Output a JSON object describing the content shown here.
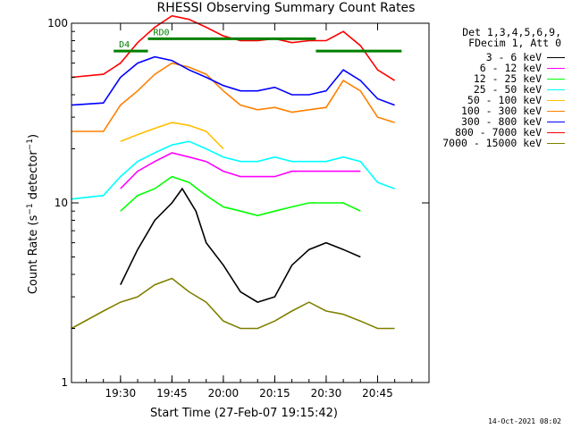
{
  "chart_data": {
    "type": "line",
    "title": "RHESSI Observing Summary Count Rates",
    "xlabel": "Start Time (27-Feb-07 19:15:42)",
    "ylabel": "Count Rate (s-1 detector-1)",
    "ylabel_parts": {
      "base": "Count Rate (s",
      "sup1": "−1",
      "mid": " detector",
      "sup2": "−1",
      "end": ")"
    },
    "yscale": "log",
    "ylim": [
      1,
      100
    ],
    "xlim": [
      "19:15:42",
      "21:00:00"
    ],
    "x_ticks": [
      "19:30",
      "19:45",
      "20:00",
      "20:15",
      "20:30",
      "20:45"
    ],
    "y_ticks": [
      "1",
      "10",
      "100"
    ],
    "legend_header": [
      "Det 1,3,4,5,6,9,",
      "FDecim 1, Att 0"
    ],
    "series": [
      {
        "name": "3 - 6 keV",
        "color": "#000000",
        "x": [
          "19:30",
          "19:35",
          "19:40",
          "19:45",
          "19:48",
          "19:52",
          "19:55",
          "20:00",
          "20:05",
          "20:10",
          "20:15",
          "20:20",
          "20:25",
          "20:30",
          "20:35",
          "20:40"
        ],
        "y": [
          3.5,
          5.5,
          8.0,
          10.0,
          12.0,
          9.0,
          6.0,
          4.5,
          3.2,
          2.8,
          3.0,
          4.5,
          5.5,
          6.0,
          5.5,
          5.0
        ]
      },
      {
        "name": "6 - 12 keV",
        "color": "#ff00ff",
        "x": [
          "19:30",
          "19:35",
          "19:40",
          "19:45",
          "19:50",
          "19:55",
          "20:00",
          "20:05",
          "20:10",
          "20:15",
          "20:20",
          "20:25",
          "20:30",
          "20:35",
          "20:40"
        ],
        "y": [
          12,
          15,
          17,
          19,
          18,
          17,
          15,
          14,
          14,
          14,
          15,
          15,
          15,
          15,
          15
        ]
      },
      {
        "name": "12 - 25 keV",
        "color": "#00ff00",
        "x": [
          "19:30",
          "19:35",
          "19:40",
          "19:45",
          "19:50",
          "19:55",
          "20:00",
          "20:05",
          "20:10",
          "20:15",
          "20:20",
          "20:25",
          "20:30",
          "20:35",
          "20:40"
        ],
        "y": [
          9,
          11,
          12,
          14,
          13,
          11,
          9.5,
          9,
          8.5,
          9,
          9.5,
          10,
          10,
          10,
          9
        ]
      },
      {
        "name": "25 - 50 keV",
        "color": "#00ffff",
        "x": [
          "19:15:42",
          "19:25",
          "19:30",
          "19:35",
          "19:40",
          "19:45",
          "19:50",
          "19:55",
          "20:00",
          "20:05",
          "20:10",
          "20:15",
          "20:20",
          "20:25",
          "20:30",
          "20:35",
          "20:40",
          "20:45",
          "20:50"
        ],
        "y": [
          10.5,
          11,
          14,
          17,
          19,
          21,
          22,
          20,
          18,
          17,
          17,
          18,
          17,
          17,
          17,
          18,
          17,
          13,
          12
        ]
      },
      {
        "name": "50 - 100 keV",
        "color": "#ffbf00",
        "x": [
          "19:30",
          "19:35",
          "19:40",
          "19:45",
          "19:50",
          "19:55",
          "20:00"
        ],
        "y": [
          22,
          24,
          26,
          28,
          27,
          25,
          20
        ]
      },
      {
        "name": "100 - 300 keV",
        "color": "#ff8000",
        "x": [
          "19:15:42",
          "19:25",
          "19:30",
          "19:35",
          "19:40",
          "19:45",
          "19:50",
          "19:55",
          "20:00",
          "20:05",
          "20:10",
          "20:15",
          "20:20",
          "20:25",
          "20:30",
          "20:35",
          "20:40",
          "20:45",
          "20:50"
        ],
        "y": [
          25,
          25,
          35,
          42,
          52,
          60,
          57,
          52,
          42,
          35,
          33,
          34,
          32,
          33,
          34,
          48,
          42,
          30,
          28
        ]
      },
      {
        "name": "300 - 800 keV",
        "color": "#0000ff",
        "x": [
          "19:15:42",
          "19:25",
          "19:30",
          "19:35",
          "19:40",
          "19:45",
          "19:50",
          "19:55",
          "20:00",
          "20:05",
          "20:10",
          "20:15",
          "20:20",
          "20:25",
          "20:30",
          "20:35",
          "20:40",
          "20:45",
          "20:50"
        ],
        "y": [
          35,
          36,
          50,
          60,
          65,
          62,
          55,
          50,
          45,
          42,
          42,
          44,
          40,
          40,
          42,
          55,
          48,
          38,
          35
        ]
      },
      {
        "name": "800 - 7000 keV",
        "color": "#ff0000",
        "x": [
          "19:15:42",
          "19:25",
          "19:30",
          "19:35",
          "19:40",
          "19:45",
          "19:50",
          "19:55",
          "20:00",
          "20:05",
          "20:10",
          "20:15",
          "20:20",
          "20:25",
          "20:30",
          "20:35",
          "20:40",
          "20:45",
          "20:50"
        ],
        "y": [
          50,
          52,
          60,
          78,
          95,
          110,
          105,
          95,
          85,
          80,
          80,
          82,
          78,
          80,
          80,
          90,
          75,
          55,
          48
        ]
      },
      {
        "name": "7000 - 15000 keV",
        "color": "#808000",
        "x": [
          "19:15:42",
          "19:25",
          "19:30",
          "19:35",
          "19:40",
          "19:45",
          "19:50",
          "19:55",
          "20:00",
          "20:05",
          "20:10",
          "20:15",
          "20:20",
          "20:25",
          "20:30",
          "20:35",
          "20:40",
          "20:45",
          "20:50"
        ],
        "y": [
          2,
          2.5,
          2.8,
          3.0,
          3.5,
          3.8,
          3.2,
          2.8,
          2.2,
          2.0,
          2.0,
          2.2,
          2.5,
          2.8,
          2.5,
          2.4,
          2.2,
          2.0,
          2.0
        ]
      }
    ],
    "annotations": [
      {
        "label": "RD0",
        "color": "#008000",
        "x_range": [
          "19:38",
          "20:27"
        ],
        "y": 82
      },
      {
        "label": "D4",
        "color": "#008000",
        "x_range": [
          "19:28",
          "19:38"
        ],
        "y": 70
      },
      {
        "label": "",
        "color": "#008000",
        "x_range": [
          "20:27",
          "20:52"
        ],
        "y": 70
      }
    ],
    "grid": false,
    "legend_placement": "right"
  },
  "footer": "14-Oct-2021 08:02"
}
